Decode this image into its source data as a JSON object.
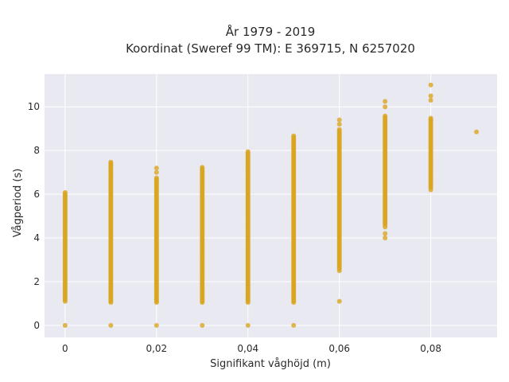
{
  "chart_data": {
    "type": "scatter",
    "title_line1": "År 1979 - 2019",
    "title_line2": "Koordinat (Sweref 99 TM): E 369715, N 6257020",
    "xlabel": "Signifikant våghöjd (m)",
    "ylabel": "Vågperiod (s)",
    "xlim": [
      -0.0045,
      0.0945
    ],
    "ylim": [
      -0.55,
      11.5
    ],
    "x_ticks": [
      0,
      0.02,
      0.04,
      0.06,
      0.08
    ],
    "x_tick_labels": [
      "0",
      "0,02",
      "0,04",
      "0,06",
      "0,08"
    ],
    "y_ticks": [
      0,
      2,
      4,
      6,
      8,
      10
    ],
    "y_tick_labels": [
      "0",
      "2",
      "4",
      "6",
      "8",
      "10"
    ],
    "grid": true,
    "colors": {
      "marker": "#DAA520",
      "plot_bg": "#E9E9F1",
      "grid": "#ffffff"
    },
    "columns": [
      {
        "x": 0.0,
        "y_min": 1.1,
        "y_max": 6.1,
        "outliers": [
          0
        ]
      },
      {
        "x": 0.01,
        "y_min": 1.05,
        "y_max": 7.5,
        "outliers": [
          0
        ]
      },
      {
        "x": 0.02,
        "y_min": 1.05,
        "y_max": 6.8,
        "outliers": [
          0,
          7.0,
          7.2
        ]
      },
      {
        "x": 0.03,
        "y_min": 1.05,
        "y_max": 7.25,
        "outliers": [
          0
        ]
      },
      {
        "x": 0.04,
        "y_min": 1.05,
        "y_max": 7.95,
        "outliers": [
          0
        ]
      },
      {
        "x": 0.05,
        "y_min": 1.05,
        "y_max": 8.7,
        "outliers": [
          0
        ]
      },
      {
        "x": 0.06,
        "y_min": 2.6,
        "y_max": 9.0,
        "outliers": [
          1.1,
          2.5,
          9.2,
          9.4
        ]
      },
      {
        "x": 0.07,
        "y_min": 4.6,
        "y_max": 9.6,
        "outliers": [
          4.0,
          4.2,
          4.5,
          10.0,
          10.25
        ]
      },
      {
        "x": 0.08,
        "y_min": 6.3,
        "y_max": 9.5,
        "outliers": [
          6.2,
          10.3,
          10.5,
          11.0
        ]
      },
      {
        "x": 0.09,
        "y_min": 8.85,
        "y_max": 8.85,
        "outliers": []
      }
    ]
  }
}
